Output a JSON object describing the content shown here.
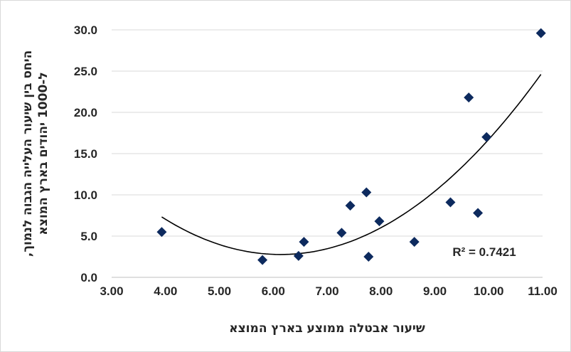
{
  "chart_data": {
    "type": "scatter",
    "title": "",
    "xlabel": "שיעור אבטלה ממוצע בארץ המוצא",
    "ylabel_lines": [
      "היחס בין שיעור העלייה הגבוה לנמוך,",
      "ל-1000 יהודים בארץ המוצא"
    ],
    "xlim": [
      3.0,
      11.0
    ],
    "ylim": [
      0.0,
      30.0
    ],
    "x_ticks": [
      3,
      4,
      5,
      6,
      7,
      8,
      9,
      10,
      11
    ],
    "x_tick_labels": [
      "3.00",
      "4.00",
      "5.00",
      "6.00",
      "7.00",
      "8.00",
      "9.00",
      "10.00",
      "11.00"
    ],
    "y_ticks": [
      0,
      5,
      10,
      15,
      20,
      25,
      30
    ],
    "y_tick_labels": [
      "0.0",
      "5.0",
      "10.0",
      "15.0",
      "20.0",
      "25.0",
      "30.0"
    ],
    "grid": "horizontal",
    "marker": "diamond",
    "marker_color": "#0d2a5e",
    "trendline_color": "#000000",
    "points": [
      {
        "x": 3.93,
        "y": 5.5
      },
      {
        "x": 5.8,
        "y": 2.1
      },
      {
        "x": 6.47,
        "y": 2.6
      },
      {
        "x": 6.57,
        "y": 4.3
      },
      {
        "x": 7.27,
        "y": 5.4
      },
      {
        "x": 7.43,
        "y": 8.7
      },
      {
        "x": 7.73,
        "y": 10.3
      },
      {
        "x": 7.77,
        "y": 2.5
      },
      {
        "x": 7.97,
        "y": 6.8
      },
      {
        "x": 8.62,
        "y": 4.3
      },
      {
        "x": 9.29,
        "y": 9.1
      },
      {
        "x": 9.63,
        "y": 21.8
      },
      {
        "x": 9.8,
        "y": 7.8
      },
      {
        "x": 9.96,
        "y": 17.0
      },
      {
        "x": 10.97,
        "y": 29.6
      }
    ],
    "trendline": {
      "type": "polynomial",
      "order": 2,
      "coefficients_a_b_c": [
        0.9346,
        -11.47,
        37.96
      ],
      "x_range": [
        3.93,
        10.97
      ],
      "r2_text": "R² = 0.7421"
    }
  }
}
